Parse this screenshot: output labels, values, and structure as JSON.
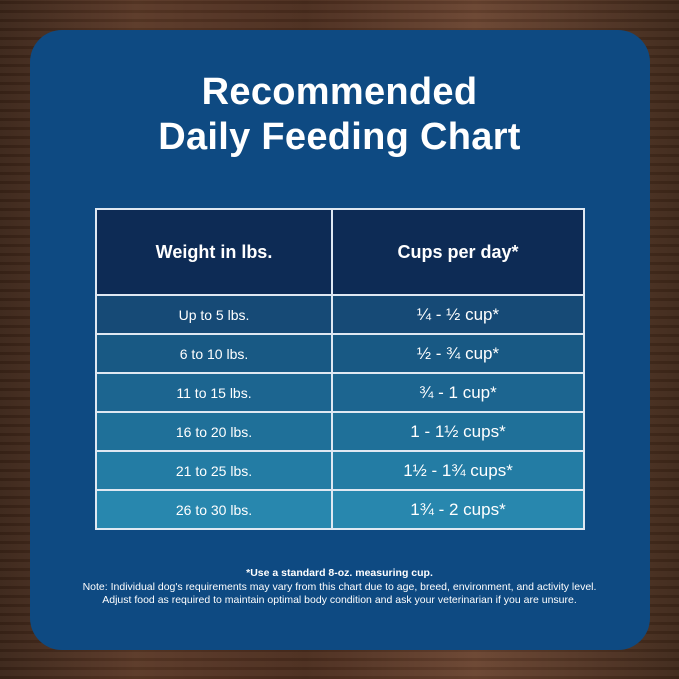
{
  "title_line1": "Recommended",
  "title_line2": "Daily Feeding Chart",
  "table": {
    "headers": [
      "Weight in lbs.",
      "Cups per day*"
    ],
    "rows": [
      {
        "weight": "Up to 5 lbs.",
        "cups": "¼ - ½ cup*",
        "color": "#164a76"
      },
      {
        "weight": "6 to 10 lbs.",
        "cups": "½ - ¾ cup*",
        "color": "#185984"
      },
      {
        "weight": "11 to 15 lbs.",
        "cups": "¾ - 1 cup*",
        "color": "#1c6590"
      },
      {
        "weight": "16 to 20 lbs.",
        "cups": "1 - 1½ cups*",
        "color": "#1f7099"
      },
      {
        "weight": "21 to 25 lbs.",
        "cups": "1½ - 1¾ cups*",
        "color": "#237ca4"
      },
      {
        "weight": "26 to 30 lbs.",
        "cups": "1¾ - 2 cups*",
        "color": "#2887ae"
      }
    ]
  },
  "footnote": "*Use a standard 8-oz. measuring cup.",
  "note_line1": "Note: Individual dog's requirements may vary from this chart due to age, breed, environment, and activity level.",
  "note_line2": "Adjust food as required to maintain optimal body condition and ask your veterinarian if you are unsure."
}
